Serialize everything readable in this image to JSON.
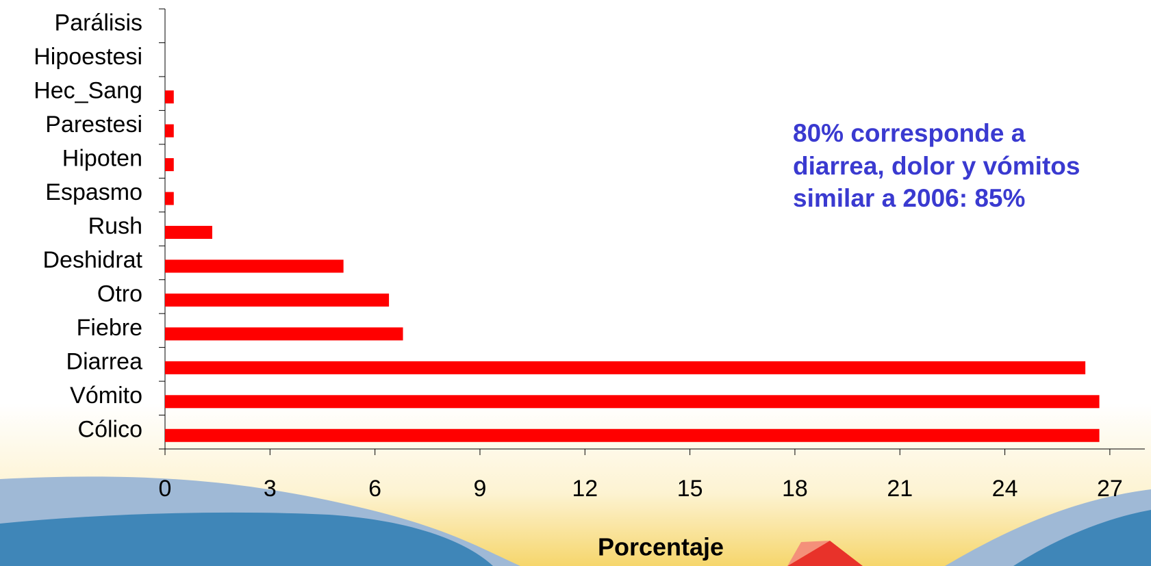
{
  "chart_data": {
    "type": "bar",
    "orientation": "horizontal",
    "categories": [
      "Parálisis",
      "Hipoestesi",
      "Hec_Sang",
      "Parestesi",
      "Hipoten",
      "Espasmo",
      "Rush",
      "Deshidrat",
      "Otro",
      "Fiebre",
      "Diarrea",
      "Vómito",
      "Cólico"
    ],
    "values": [
      0,
      0,
      0.25,
      0.25,
      0.25,
      0.25,
      1.35,
      5.1,
      6.4,
      6.8,
      26.3,
      26.7,
      26.7
    ],
    "color": "#ff0000",
    "xlim": [
      0,
      28
    ],
    "xticks": [
      0,
      3,
      6,
      9,
      12,
      15,
      18,
      21,
      24,
      27
    ],
    "x_label": "Porcentaje",
    "annotations": [
      "80% corresponde a",
      "diarrea, dolor y vómitos",
      "similar a 2006: 85%"
    ]
  }
}
